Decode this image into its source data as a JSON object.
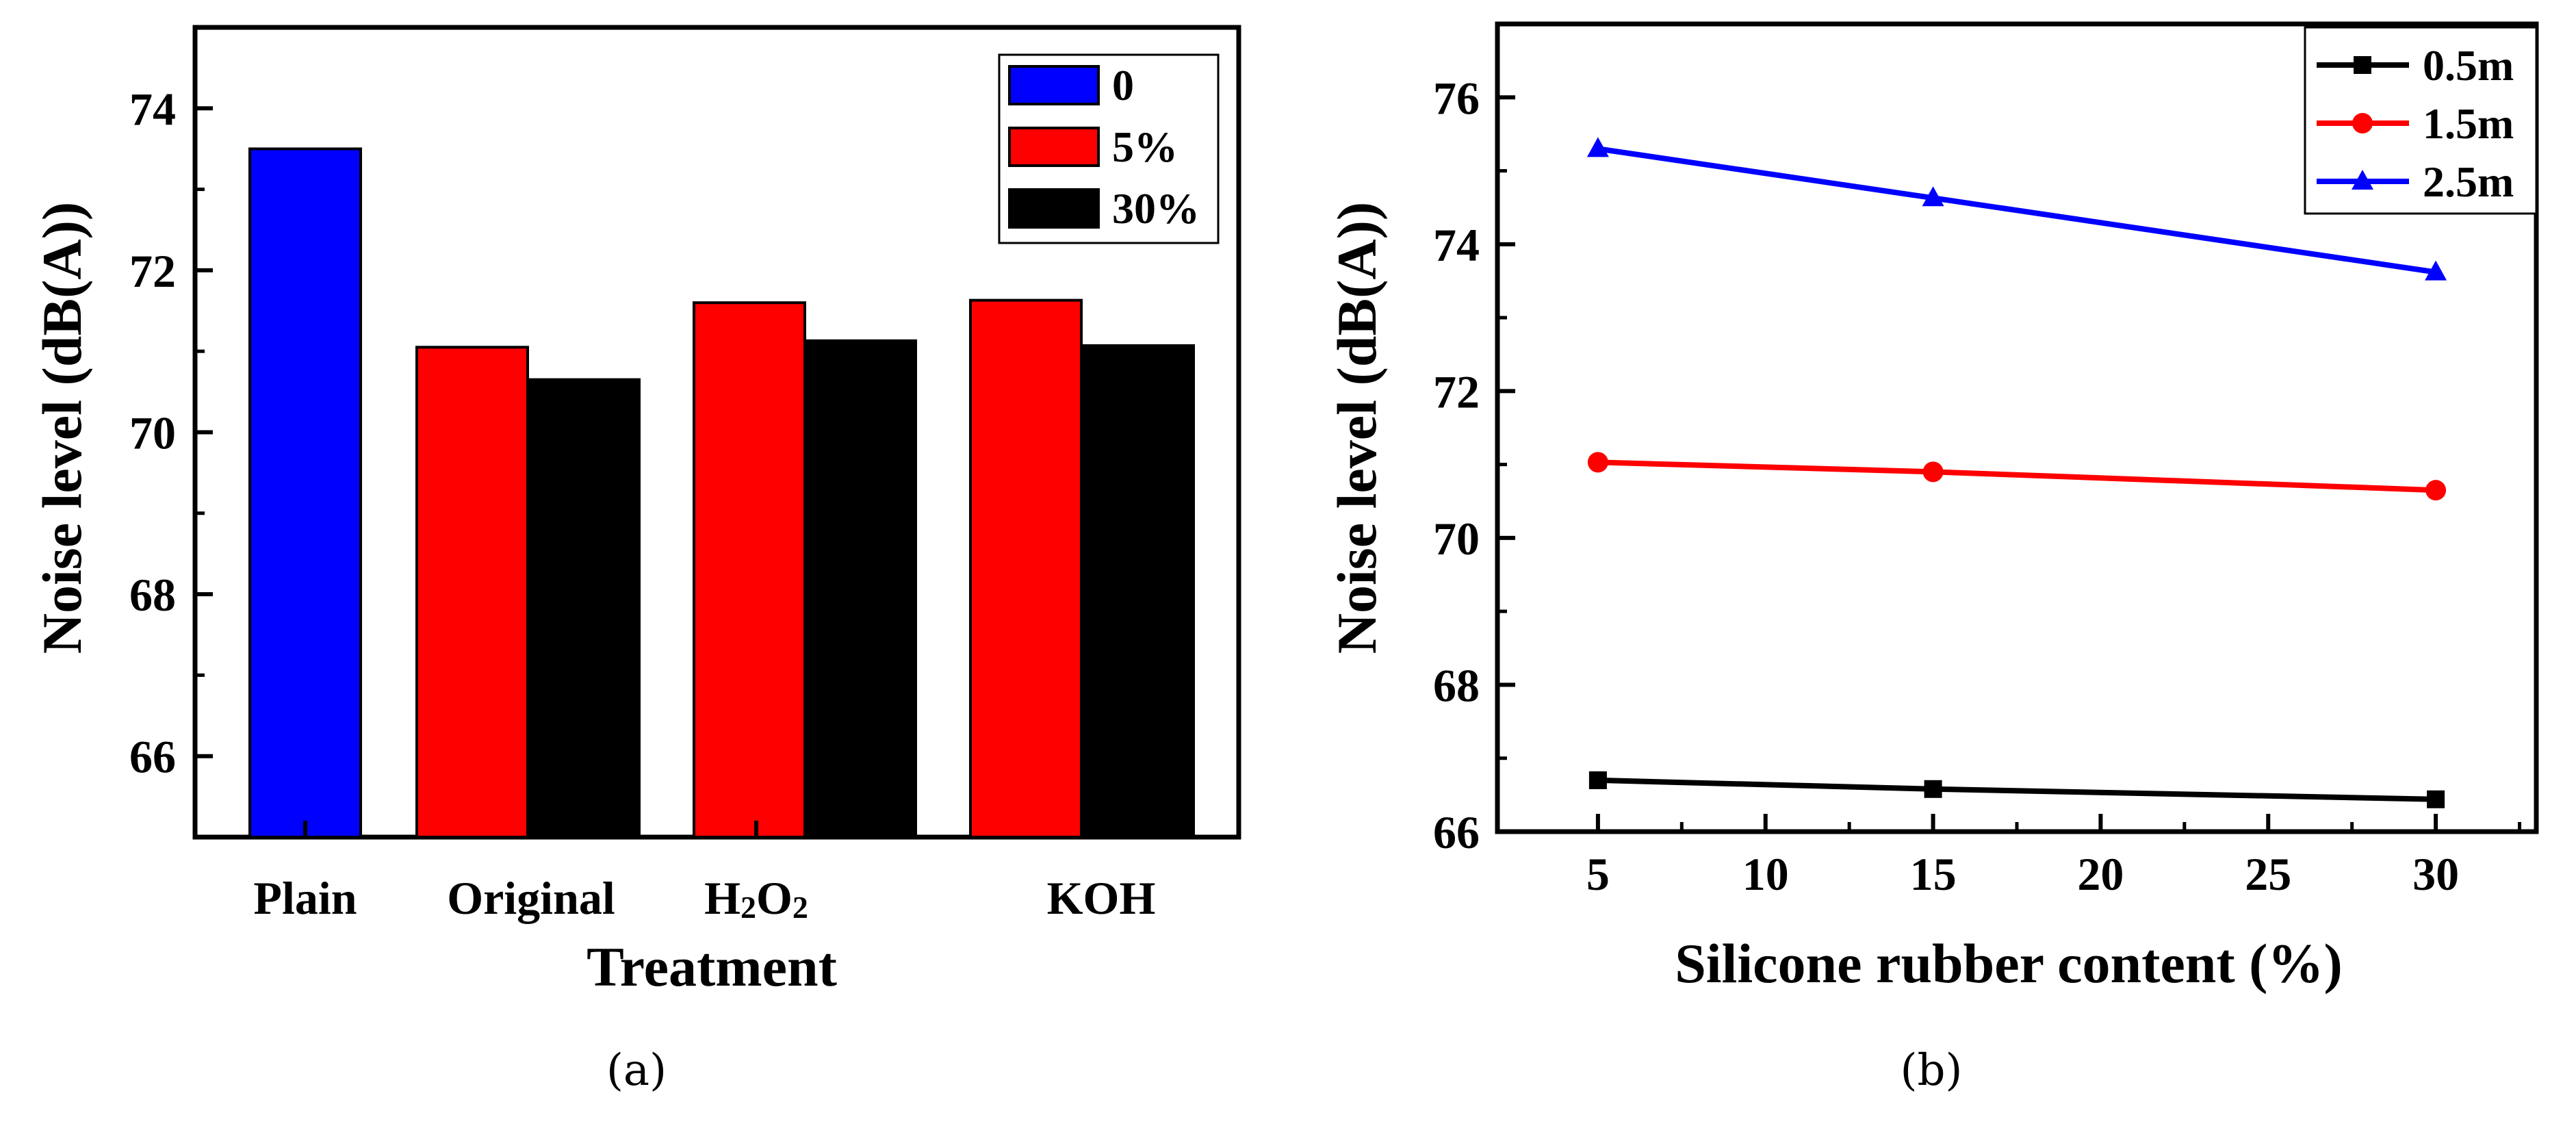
{
  "chart_data": [
    {
      "type": "bar",
      "caption": "(a)",
      "xlabel": "Treatment",
      "ylabel": "Noise level (dB(A))",
      "ylim": [
        65,
        75
      ],
      "yticks": [
        "66",
        "68",
        "70",
        "72",
        "74"
      ],
      "categories": [
        "Plain",
        "Original",
        "H2O2",
        "KOH"
      ],
      "category_labels": {
        "h2o2_main": "H",
        "h2o2_sub1": "2",
        "h2o2_mid": "O",
        "h2o2_sub2": "2"
      },
      "series": [
        {
          "name": "0",
          "color": "#0000ff",
          "values": [
            73.5,
            null,
            null,
            null
          ]
        },
        {
          "name": "5%",
          "color": "#ff0000",
          "values": [
            null,
            71.05,
            71.6,
            71.63
          ]
        },
        {
          "name": "30%",
          "color": "#000000",
          "values": [
            null,
            70.65,
            71.13,
            71.07
          ]
        }
      ],
      "legend_position": "top-right"
    },
    {
      "type": "line",
      "caption": "(b)",
      "xlabel": "Silicone rubber content (%)",
      "ylabel": "Noise level (dB(A))",
      "xlim": [
        2,
        33
      ],
      "ylim": [
        66,
        77
      ],
      "xticks": [
        "5",
        "10",
        "15",
        "20",
        "25",
        "30"
      ],
      "yticks": [
        "66",
        "68",
        "70",
        "72",
        "74",
        "76"
      ],
      "x": [
        5,
        15,
        30
      ],
      "series": [
        {
          "name": "0.5m",
          "color": "#000000",
          "marker": "square",
          "values": [
            66.7,
            66.58,
            66.44
          ]
        },
        {
          "name": "1.5m",
          "color": "#ff0000",
          "marker": "circle",
          "values": [
            71.03,
            70.9,
            70.65
          ]
        },
        {
          "name": "2.5m",
          "color": "#0000ff",
          "marker": "triangle",
          "values": [
            75.3,
            74.63,
            73.62
          ]
        }
      ],
      "legend_position": "top-right"
    }
  ]
}
